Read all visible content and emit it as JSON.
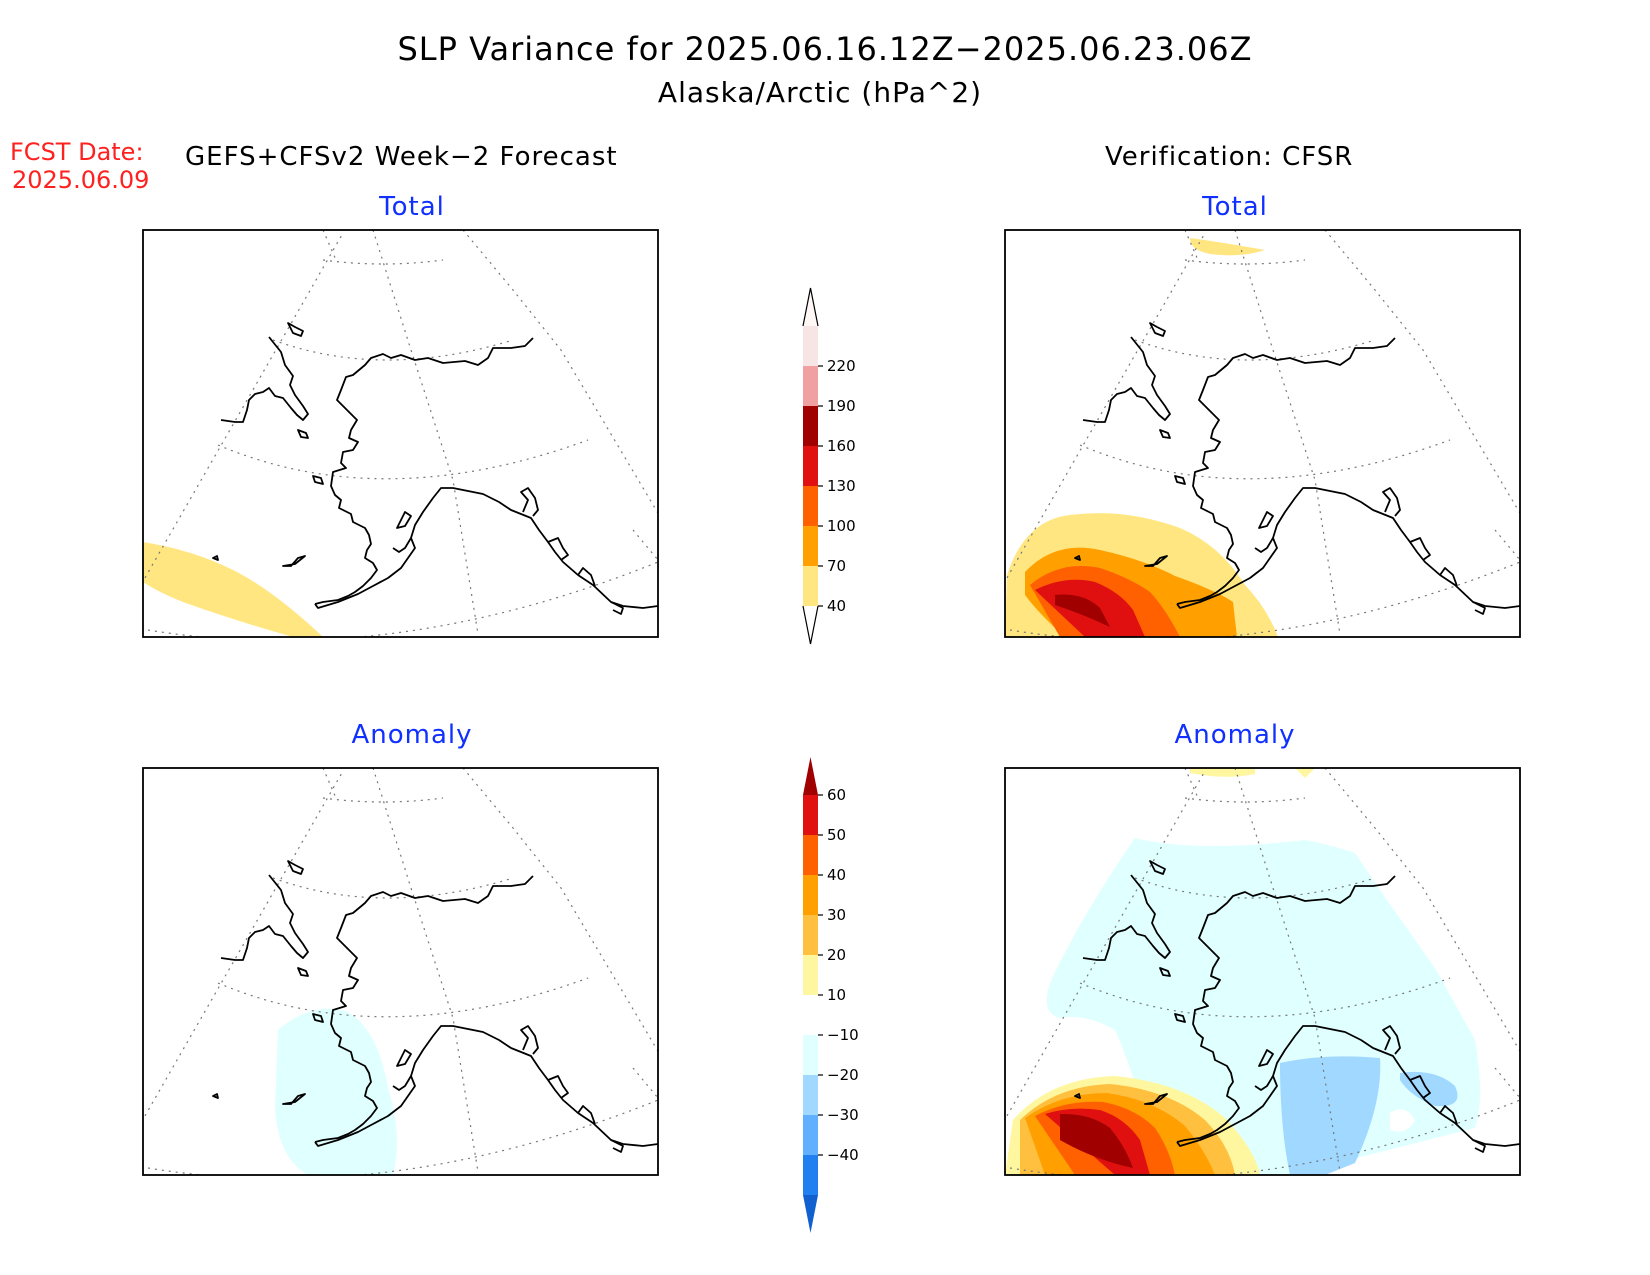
{
  "header": {
    "title": "SLP Variance for 2025.06.16.12Z−2025.06.23.06Z",
    "subtitle": "Alaska/Arctic (hPa^2)",
    "fcst_label": "FCST Date:",
    "fcst_date": "2025.06.09",
    "left_header": "GEFS+CFSv2 Week−2 Forecast",
    "right_header": "Verification: CFSR"
  },
  "panels": {
    "forecast_total_title": "Total",
    "forecast_anomaly_title": "Anomaly",
    "verification_total_title": "Total",
    "verification_anomaly_title": "Anomaly"
  },
  "colorbars": {
    "total": {
      "labels": [
        "220",
        "190",
        "160",
        "130",
        "100",
        "70",
        "40"
      ],
      "colors": [
        "#f7e4e4",
        "#f0a0a0",
        "#a00000",
        "#e01010",
        "#ff6000",
        "#ffa000",
        "#ffe680"
      ]
    },
    "anomaly": {
      "labels": [
        "60",
        "50",
        "40",
        "30",
        "20",
        "10",
        "−10",
        "−20",
        "−30",
        "−40"
      ],
      "colors": [
        "#a00000",
        "#e01010",
        "#ff6000",
        "#ffa000",
        "#ffc040",
        "#fff7a0",
        "#ffffff",
        "#e0ffff",
        "#a0d8ff",
        "#60b0ff",
        "#2080f0",
        "#1060d0"
      ]
    }
  }
}
